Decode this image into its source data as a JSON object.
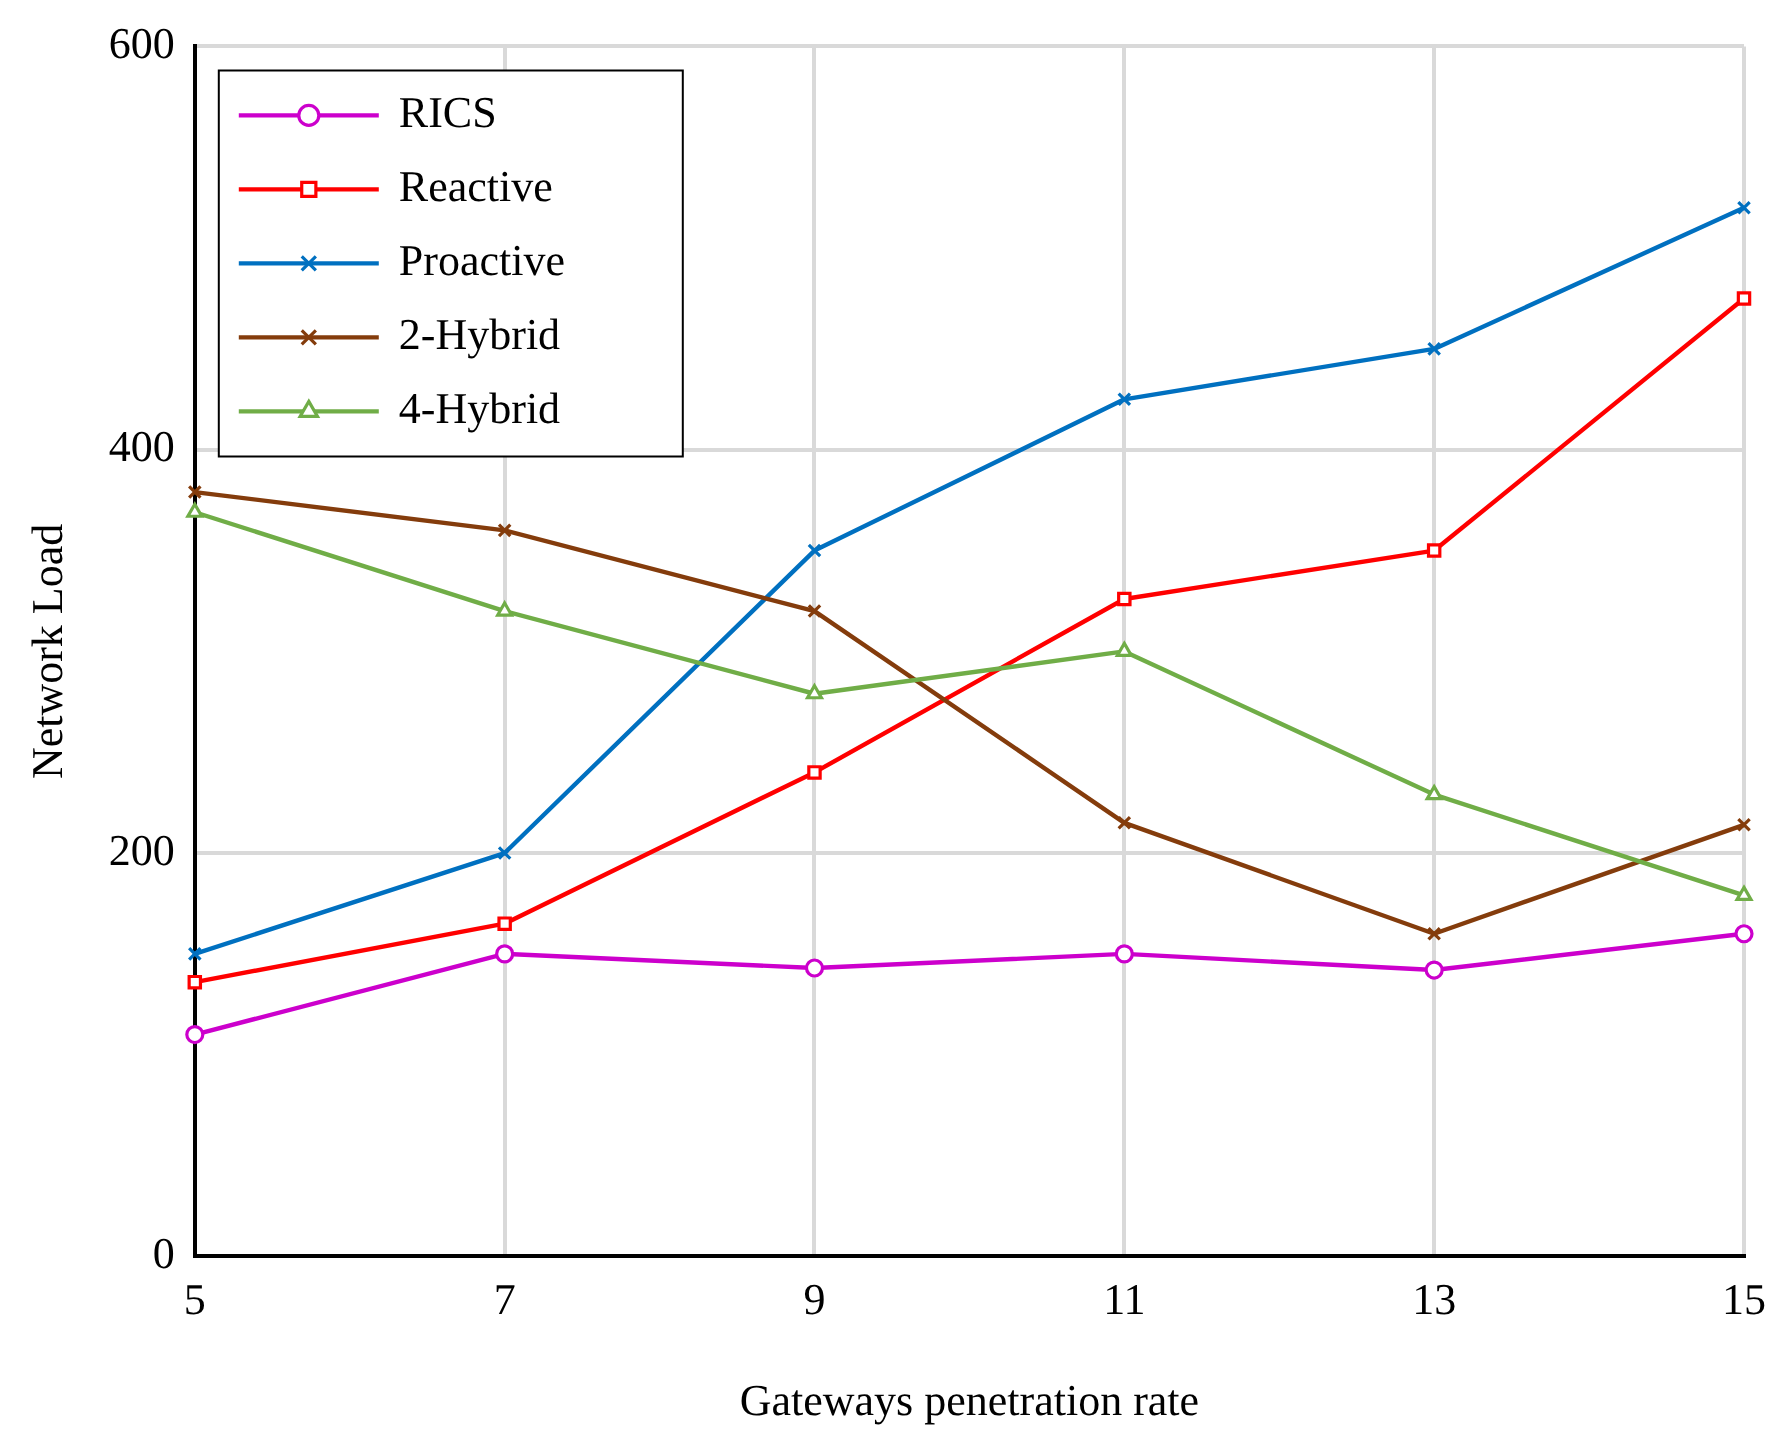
{
  "chart_data": {
    "type": "line",
    "xlabel": "Gateways penetration rate",
    "ylabel": "Network Load",
    "x": [
      5,
      7,
      9,
      11,
      13,
      15
    ],
    "series": [
      {
        "name": "RICS",
        "color": "#cc00cc",
        "marker": "circle",
        "values": [
          110,
          150,
          143,
          150,
          142,
          160
        ]
      },
      {
        "name": "Reactive",
        "color": "#ff0000",
        "marker": "square",
        "values": [
          136,
          165,
          240,
          326,
          350,
          475
        ]
      },
      {
        "name": "Proactive",
        "color": "#0070c0",
        "marker": "cross",
        "values": [
          150,
          200,
          350,
          425,
          450,
          520
        ]
      },
      {
        "name": "2-Hybrid",
        "color": "#843c0c",
        "marker": "cross",
        "values": [
          379,
          360,
          320,
          215,
          160,
          214
        ]
      },
      {
        "name": "4-Hybrid",
        "color": "#70ad47",
        "marker": "triangle",
        "values": [
          369,
          320,
          279,
          300,
          229,
          179
        ]
      }
    ],
    "xlim": [
      5,
      15
    ],
    "xticks": [
      5,
      7,
      9,
      11,
      13,
      15
    ],
    "ylim": [
      0,
      600
    ],
    "yticks": [
      0,
      200,
      400,
      600
    ],
    "grid": true,
    "legend": "top left",
    "line_style": "solid"
  }
}
